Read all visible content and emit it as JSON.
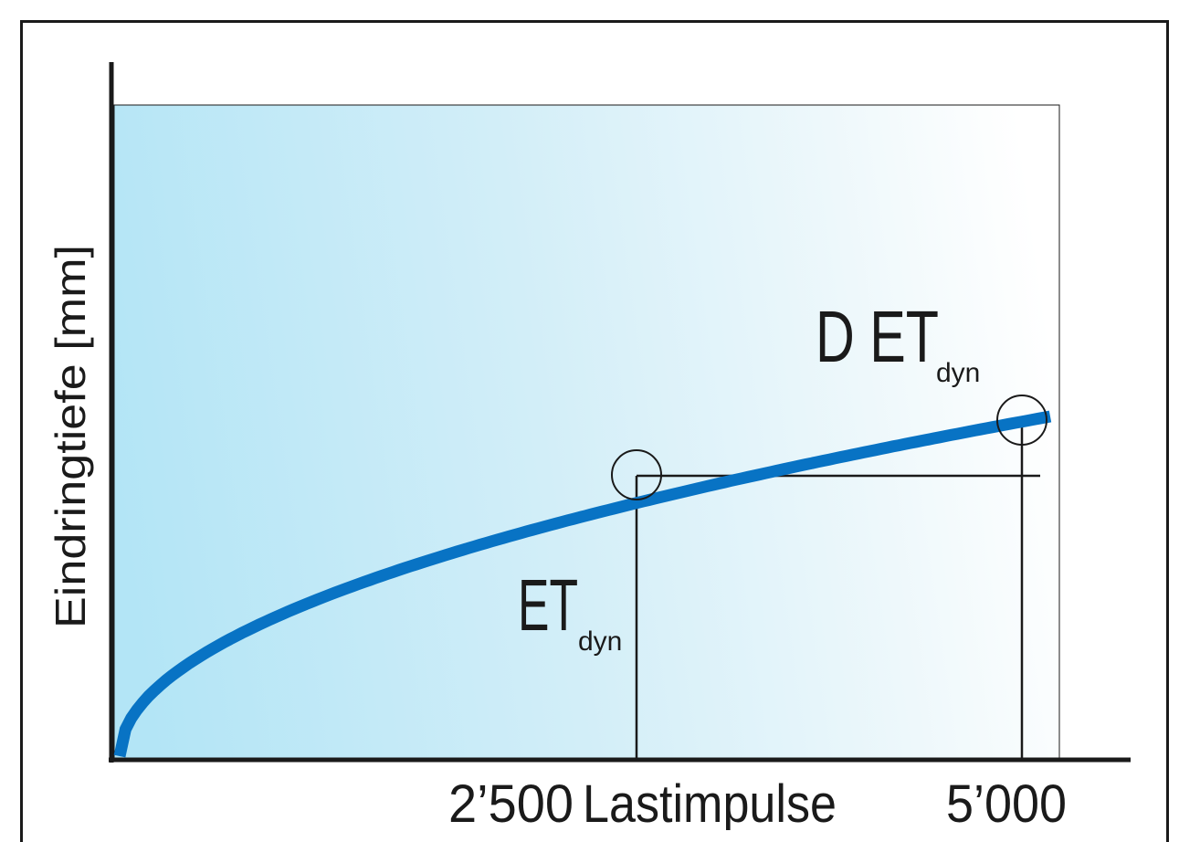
{
  "diagram": {
    "ylabel": "Eindringtiefe [mm]",
    "x_tick_1": "2’500",
    "x_label": "Lastimpulse",
    "x_tick_2": "5’000",
    "label_et_main": "ET",
    "label_et_sub": "dyn",
    "label_det_prefix": "D ET",
    "label_det_sub": "dyn"
  },
  "colors": {
    "curve": "#0873c4",
    "fill_start": "#b3e5f6",
    "fill_end": "#ffffff",
    "lines": "#1a1a1a"
  }
}
